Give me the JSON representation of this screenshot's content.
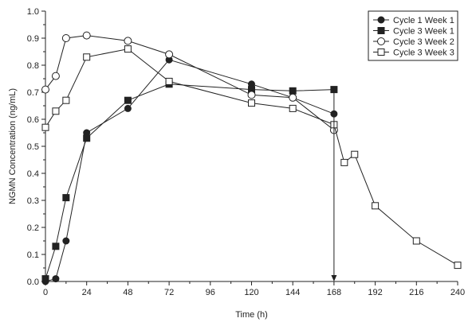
{
  "chart_data": {
    "type": "line",
    "xlabel": "Time (h)",
    "ylabel": "NGMN Concentration (ng/mL)",
    "xlim": [
      0,
      240
    ],
    "ylim": [
      0.0,
      1.0
    ],
    "x_ticks": [
      0,
      24,
      48,
      72,
      96,
      120,
      144,
      168,
      192,
      216,
      240
    ],
    "y_ticks": [
      0.0,
      0.1,
      0.2,
      0.3,
      0.4,
      0.5,
      0.6,
      0.7,
      0.8,
      0.9,
      1.0
    ],
    "x_tick_labels": [
      "0",
      "24",
      "48",
      "72",
      "96",
      "120",
      "144",
      "168",
      "192",
      "216",
      "240"
    ],
    "y_tick_labels": [
      "0.0",
      "0.1",
      "0.2",
      "0.3",
      "0.4",
      "0.5",
      "0.6",
      "0.7",
      "0.8",
      "0.9",
      "1.0"
    ],
    "grid": false,
    "legend_position": "top-right",
    "series": [
      {
        "name": "Cycle 1 Week 1",
        "marker": "filled-circle",
        "x": [
          0,
          6,
          12,
          24,
          48,
          72,
          120,
          144,
          168
        ],
        "y": [
          0.0,
          0.01,
          0.15,
          0.55,
          0.64,
          0.82,
          0.73,
          0.68,
          0.62
        ]
      },
      {
        "name": "Cycle 3 Week 1",
        "marker": "filled-square",
        "x": [
          0,
          6,
          12,
          24,
          48,
          72,
          120,
          144,
          168
        ],
        "y": [
          0.01,
          0.13,
          0.31,
          0.53,
          0.67,
          0.73,
          0.71,
          0.705,
          0.71
        ]
      },
      {
        "name": "Cycle 3 Week 2",
        "marker": "open-circle",
        "x": [
          0,
          6,
          12,
          24,
          48,
          72,
          120,
          144,
          168
        ],
        "y": [
          0.71,
          0.76,
          0.9,
          0.91,
          0.89,
          0.84,
          0.69,
          0.68,
          0.56
        ]
      },
      {
        "name": "Cycle 3 Week 3",
        "marker": "open-square",
        "x": [
          0,
          6,
          12,
          24,
          48,
          72,
          120,
          144,
          168,
          174,
          180,
          192,
          216,
          240
        ],
        "y": [
          0.57,
          0.63,
          0.67,
          0.83,
          0.86,
          0.74,
          0.66,
          0.64,
          0.58,
          0.44,
          0.47,
          0.28,
          0.15,
          0.06
        ]
      }
    ],
    "annotations": [
      {
        "type": "arrow",
        "x": 168,
        "y_from": 0.71,
        "y_to": 0.0
      }
    ]
  }
}
